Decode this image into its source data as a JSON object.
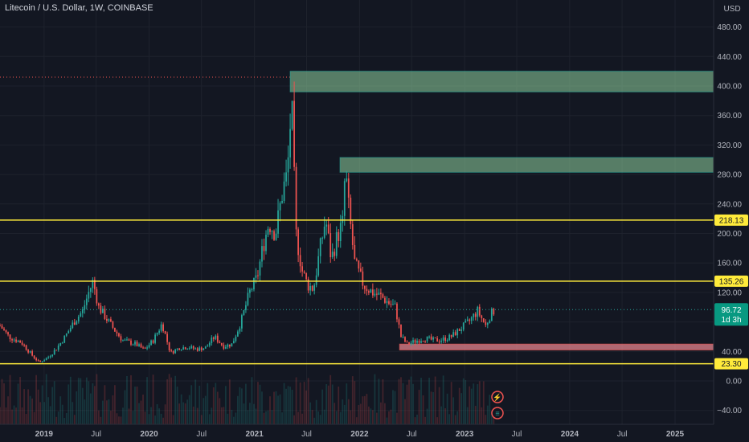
{
  "title": "Litecoin / U.S. Dollar, 1W, COINBASE",
  "currency_label": "USD",
  "colors": {
    "background": "#131722",
    "grid": "#1e222d",
    "up": "#26a69a",
    "down": "#ef5350",
    "level_line": "#ffeb3b",
    "resistance_zone": "#8fd19e",
    "support_zone": "#f28b94",
    "last_price_bg": "#089981"
  },
  "alert_badges": [
    "⚡",
    "≡"
  ],
  "chart_data": {
    "type": "candlestick",
    "timeframe": "1W",
    "symbol": "Litecoin / U.S. Dollar",
    "exchange": "COINBASE",
    "price_unit": "USD",
    "x_range": [
      "2018-08-01",
      "2025-05-15"
    ],
    "y_range": [
      -50,
      510
    ],
    "x_tick_labels": [
      {
        "label": "2019",
        "date": "2019-01-01"
      },
      {
        "label": "Jul",
        "date": "2019-07-01"
      },
      {
        "label": "2020",
        "date": "2020-01-01"
      },
      {
        "label": "Jul",
        "date": "2020-07-01"
      },
      {
        "label": "2021",
        "date": "2021-01-01"
      },
      {
        "label": "Jul",
        "date": "2021-07-01"
      },
      {
        "label": "2022",
        "date": "2022-01-01"
      },
      {
        "label": "Jul",
        "date": "2022-07-01"
      },
      {
        "label": "2023",
        "date": "2023-01-01"
      },
      {
        "label": "Jul",
        "date": "2023-07-01"
      },
      {
        "label": "2024",
        "date": "2024-01-01"
      },
      {
        "label": "Jul",
        "date": "2024-07-01"
      },
      {
        "label": "2025",
        "date": "2025-01-01"
      }
    ],
    "y_tick_labels": [
      "480.00",
      "440.00",
      "400.00",
      "360.00",
      "320.00",
      "280.00",
      "240.00",
      "200.00",
      "160.00",
      "120.00",
      "80.00",
      "40.00",
      "0.00",
      "−40.00"
    ],
    "y_tick_values": [
      480,
      440,
      400,
      360,
      320,
      280,
      240,
      200,
      160,
      120,
      80,
      40,
      0,
      -40
    ],
    "close_path": [
      [
        "2018-08-01",
        75
      ],
      [
        "2018-09-01",
        60
      ],
      [
        "2018-10-15",
        52
      ],
      [
        "2018-11-20",
        35
      ],
      [
        "2018-12-15",
        25
      ],
      [
        "2019-01-15",
        32
      ],
      [
        "2019-02-15",
        45
      ],
      [
        "2019-03-15",
        60
      ],
      [
        "2019-04-15",
        80
      ],
      [
        "2019-05-15",
        95
      ],
      [
        "2019-06-05",
        120
      ],
      [
        "2019-06-20",
        135
      ],
      [
        "2019-07-10",
        100
      ],
      [
        "2019-08-05",
        85
      ],
      [
        "2019-09-01",
        70
      ],
      [
        "2019-10-01",
        55
      ],
      [
        "2019-11-15",
        50
      ],
      [
        "2019-12-15",
        42
      ],
      [
        "2020-01-15",
        55
      ],
      [
        "2020-02-15",
        78
      ],
      [
        "2020-03-15",
        38
      ],
      [
        "2020-04-15",
        45
      ],
      [
        "2020-05-15",
        46
      ],
      [
        "2020-06-15",
        43
      ],
      [
        "2020-07-15",
        45
      ],
      [
        "2020-08-15",
        60
      ],
      [
        "2020-09-15",
        47
      ],
      [
        "2020-10-15",
        50
      ],
      [
        "2020-11-15",
        80
      ],
      [
        "2020-12-15",
        120
      ],
      [
        "2021-01-10",
        140
      ],
      [
        "2021-02-01",
        185
      ],
      [
        "2021-02-20",
        215
      ],
      [
        "2021-03-15",
        200
      ],
      [
        "2021-04-10",
        260
      ],
      [
        "2021-04-25",
        280
      ],
      [
        "2021-05-10",
        380
      ],
      [
        "2021-05-25",
        200
      ],
      [
        "2021-06-15",
        150
      ],
      [
        "2021-07-05",
        130
      ],
      [
        "2021-07-25",
        125
      ],
      [
        "2021-08-15",
        175
      ],
      [
        "2021-09-05",
        220
      ],
      [
        "2021-09-25",
        165
      ],
      [
        "2021-10-15",
        195
      ],
      [
        "2021-11-05",
        215
      ],
      [
        "2021-11-12",
        290
      ],
      [
        "2021-11-25",
        230
      ],
      [
        "2021-12-15",
        160
      ],
      [
        "2022-01-15",
        130
      ],
      [
        "2022-02-15",
        120
      ],
      [
        "2022-03-15",
        115
      ],
      [
        "2022-04-15",
        105
      ],
      [
        "2022-05-05",
        100
      ],
      [
        "2022-05-25",
        60
      ],
      [
        "2022-06-15",
        50
      ],
      [
        "2022-07-15",
        54
      ],
      [
        "2022-08-15",
        58
      ],
      [
        "2022-09-15",
        55
      ],
      [
        "2022-10-15",
        56
      ],
      [
        "2022-11-15",
        60
      ],
      [
        "2022-12-15",
        70
      ],
      [
        "2023-01-15",
        80
      ],
      [
        "2023-02-15",
        95
      ],
      [
        "2023-03-15",
        75
      ],
      [
        "2023-04-01",
        90
      ],
      [
        "2023-04-15",
        96.72
      ]
    ],
    "horizontal_levels": [
      {
        "price": 218.13,
        "label": "218.13"
      },
      {
        "price": 135.26,
        "label": "135.26"
      },
      {
        "price": 23.3,
        "label": "23.30"
      }
    ],
    "zones": [
      {
        "from": "2021-05-05",
        "to": "2025-05-15",
        "low": 392,
        "high": 420,
        "kind": "resistance"
      },
      {
        "from": "2021-10-25",
        "to": "2025-05-15",
        "low": 283,
        "high": 303,
        "kind": "resistance"
      },
      {
        "from": "2022-05-20",
        "to": "2025-05-15",
        "low": 42,
        "high": 50,
        "kind": "support"
      }
    ],
    "all_time_high_line": {
      "price": 412,
      "from": "2018-08-01",
      "to": "2021-05-10"
    },
    "last_price": {
      "value": "96.72",
      "countdown": "1d 3h",
      "price": 96.72
    }
  }
}
